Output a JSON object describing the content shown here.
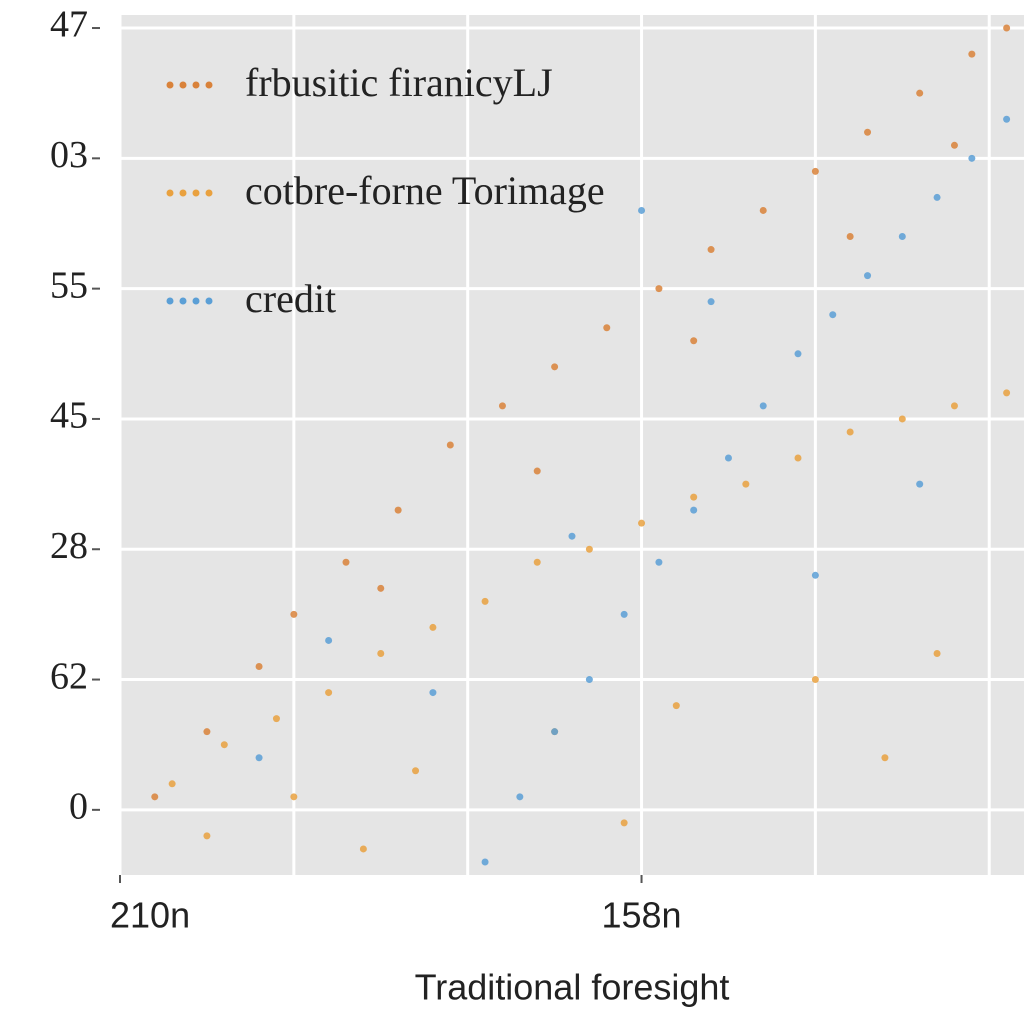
{
  "chart_data": {
    "type": "scatter",
    "xlabel": "Traditional foresight",
    "xlim": [
      0,
      5.2
    ],
    "xticks": [
      {
        "value": 0,
        "label": "210n"
      },
      {
        "value": 3,
        "label": "158n"
      }
    ],
    "xgrid": [
      0,
      1,
      2,
      3,
      4,
      5
    ],
    "ylim": [
      -0.5,
      6.1
    ],
    "yticks": [
      0,
      {
        "value": 1,
        "label": "62"
      },
      {
        "value": 2,
        "label": "28"
      },
      {
        "value": 3,
        "label": "45"
      },
      {
        "value": 4,
        "label": "55"
      },
      {
        "value": 5,
        "label": "03"
      },
      {
        "value": 6,
        "label": "47"
      }
    ],
    "grid": true,
    "legend": "upper left",
    "series": [
      {
        "name": "frbusitic firanicyLJ",
        "color": "#d9823a",
        "x": [
          0.2,
          0.5,
          0.8,
          1.0,
          1.3,
          1.6,
          1.9,
          2.2,
          2.5,
          2.8,
          3.1,
          3.4,
          3.7,
          4.0,
          4.3,
          4.6,
          4.9,
          5.1,
          1.5,
          2.4,
          3.3,
          4.2,
          4.8
        ],
        "values": [
          0.1,
          0.6,
          1.1,
          1.5,
          1.9,
          2.3,
          2.8,
          3.1,
          3.4,
          3.7,
          4.0,
          4.3,
          4.6,
          4.9,
          5.2,
          5.5,
          5.8,
          6.0,
          1.7,
          2.6,
          3.6,
          4.4,
          5.1
        ]
      },
      {
        "name": "cotbre-forne Torimage",
        "color": "#e9a13f",
        "x": [
          0.3,
          0.6,
          0.9,
          1.2,
          1.5,
          1.8,
          2.1,
          2.4,
          2.7,
          3.0,
          3.3,
          3.6,
          3.9,
          4.2,
          4.5,
          4.8,
          5.1,
          0.5,
          1.0,
          1.7,
          2.5,
          3.2,
          4.0,
          4.7,
          1.4,
          2.9,
          4.4
        ],
        "values": [
          0.2,
          0.5,
          0.7,
          0.9,
          1.2,
          1.4,
          1.6,
          1.9,
          2.0,
          2.2,
          2.4,
          2.5,
          2.7,
          2.9,
          3.0,
          3.1,
          3.2,
          -0.2,
          0.1,
          0.3,
          0.6,
          0.8,
          1.0,
          1.2,
          -0.3,
          -0.1,
          0.4
        ]
      },
      {
        "name": "credit",
        "color": "#5b9fd6",
        "x": [
          2.1,
          2.3,
          2.5,
          2.7,
          2.9,
          3.1,
          3.3,
          3.5,
          3.7,
          3.9,
          4.1,
          4.3,
          4.5,
          4.7,
          4.9,
          5.1,
          1.2,
          1.8,
          2.6,
          3.4,
          4.0,
          4.6,
          0.8,
          3.0
        ],
        "values": [
          -0.4,
          0.1,
          0.6,
          1.0,
          1.5,
          1.9,
          2.3,
          2.7,
          3.1,
          3.5,
          3.8,
          4.1,
          4.4,
          4.7,
          5.0,
          5.3,
          1.3,
          0.9,
          2.1,
          3.9,
          1.8,
          2.5,
          0.4,
          4.6
        ]
      }
    ]
  }
}
